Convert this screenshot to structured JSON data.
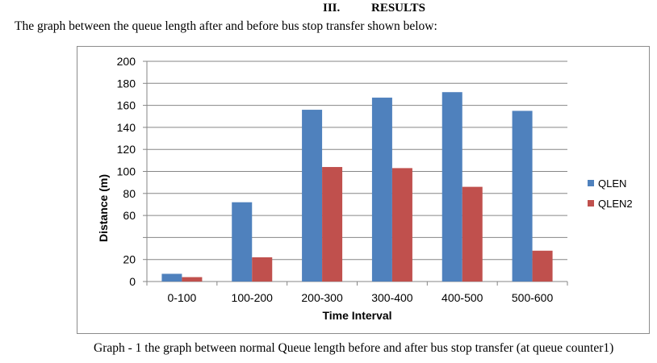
{
  "section": {
    "number": "III.",
    "title": "RESULTS"
  },
  "intro_text": "The graph between the queue length after and before bus stop transfer shown below:",
  "caption": "Graph - 1 the graph between normal Queue length before and after bus stop transfer (at queue counter1)",
  "colors": {
    "qlen": "#4f81bd",
    "qlen2": "#c0504d",
    "grid": "#868686"
  },
  "chart_data": {
    "type": "bar",
    "categories": [
      "0-100",
      "100-200",
      "200-300",
      "300-400",
      "400-500",
      "500-600"
    ],
    "series": [
      {
        "name": "QLEN",
        "values": [
          7,
          72,
          156,
          167,
          172,
          155
        ]
      },
      {
        "name": "QLEN2",
        "values": [
          4,
          22,
          104,
          103,
          86,
          28
        ]
      }
    ],
    "xlabel": "Time Interval",
    "ylabel": "Distance (m)",
    "ylim": [
      0,
      200
    ],
    "yticks": [
      "0",
      "20",
      "60",
      "80",
      "100",
      "120",
      "140",
      "160",
      "180",
      "200"
    ],
    "grid": true,
    "legend_position": "right"
  }
}
